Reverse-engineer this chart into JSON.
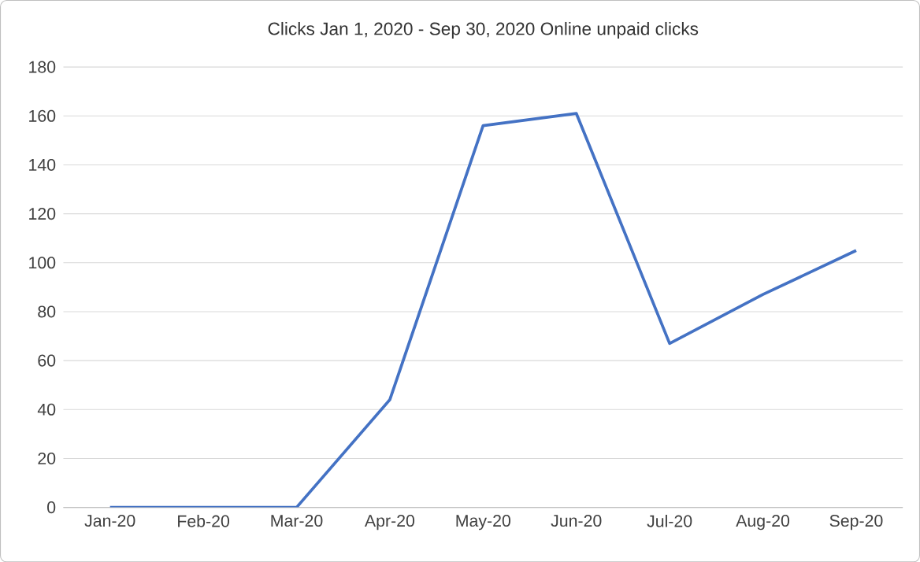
{
  "chart_data": {
    "type": "line",
    "title": "Clicks Jan 1, 2020 - Sep 30, 2020 Online unpaid clicks",
    "categories": [
      "Jan-20",
      "Feb-20",
      "Mar-20",
      "Apr-20",
      "May-20",
      "Jun-20",
      "Jul-20",
      "Aug-20",
      "Sep-20"
    ],
    "series": [
      {
        "color": "#4472c4",
        "values": [
          0,
          0,
          0,
          44,
          156,
          161,
          67,
          87,
          105
        ]
      }
    ],
    "ylim": [
      0,
      180
    ],
    "yticks": [
      0,
      20,
      40,
      60,
      80,
      100,
      120,
      140,
      160,
      180
    ],
    "grid": "y",
    "marker": "none",
    "line_style": "solid"
  }
}
